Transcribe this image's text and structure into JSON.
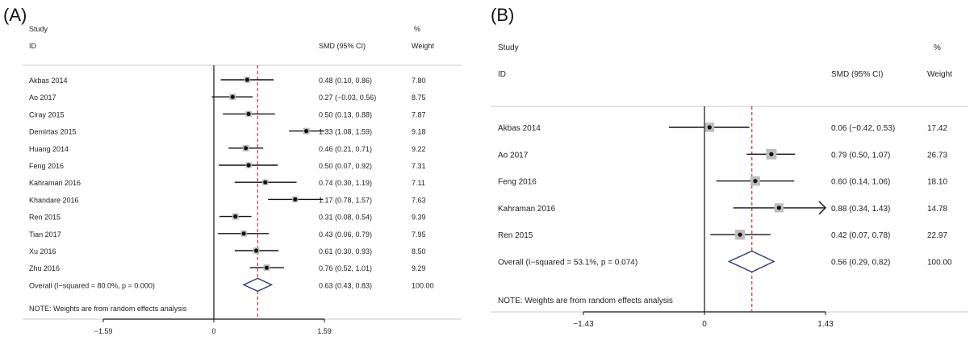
{
  "chart_data": [
    {
      "panel_label": "(A)",
      "type": "forest",
      "headers": {
        "study_line1": "Study",
        "study_line2": "ID",
        "estimate": "SMD (95% CI)",
        "weight_line1": "%",
        "weight_line2": "Weight"
      },
      "studies": [
        {
          "name": "Akbas 2014",
          "smd": 0.48,
          "lo": 0.1,
          "hi": 0.86,
          "ci_text": "0.48 (0.10, 0.86)",
          "weight": "7.80"
        },
        {
          "name": "Ao 2017",
          "smd": 0.27,
          "lo": -0.03,
          "hi": 0.56,
          "ci_text": "0.27 (−0.03, 0.56)",
          "weight": "8.75"
        },
        {
          "name": "Ciray 2015",
          "smd": 0.5,
          "lo": 0.13,
          "hi": 0.88,
          "ci_text": "0.50 (0.13, 0.88)",
          "weight": "7.87"
        },
        {
          "name": "Demirtas 2015",
          "smd": 1.33,
          "lo": 1.08,
          "hi": 1.59,
          "ci_text": "1.33 (1.08, 1.59)",
          "weight": "9.18"
        },
        {
          "name": "Huang 2014",
          "smd": 0.46,
          "lo": 0.21,
          "hi": 0.71,
          "ci_text": "0.46 (0.21, 0.71)",
          "weight": "9.22"
        },
        {
          "name": "Feng 2016",
          "smd": 0.5,
          "lo": 0.07,
          "hi": 0.92,
          "ci_text": "0.50 (0.07, 0.92)",
          "weight": "7.31"
        },
        {
          "name": "Kahraman 2016",
          "smd": 0.74,
          "lo": 0.3,
          "hi": 1.19,
          "ci_text": "0.74 (0.30, 1.19)",
          "weight": "7.11"
        },
        {
          "name": "Khandare 2016",
          "smd": 1.17,
          "lo": 0.78,
          "hi": 1.57,
          "ci_text": "1.17 (0.78, 1.57)",
          "weight": "7.63"
        },
        {
          "name": "Ren 2015",
          "smd": 0.31,
          "lo": 0.08,
          "hi": 0.54,
          "ci_text": "0.31 (0.08, 0.54)",
          "weight": "9.39"
        },
        {
          "name": "Tian 2017",
          "smd": 0.43,
          "lo": 0.06,
          "hi": 0.79,
          "ci_text": "0.43 (0.06, 0.79)",
          "weight": "7.95"
        },
        {
          "name": "Xu 2016",
          "smd": 0.61,
          "lo": 0.3,
          "hi": 0.93,
          "ci_text": "0.61 (0.30, 0.93)",
          "weight": "8.50"
        },
        {
          "name": "Zhu 2016",
          "smd": 0.76,
          "lo": 0.52,
          "hi": 1.01,
          "ci_text": "0.76 (0.52, 1.01)",
          "weight": "9.29"
        }
      ],
      "overall": {
        "label": "Overall  (I−squared = 80.0%, p = 0.000)",
        "smd": 0.63,
        "lo": 0.43,
        "hi": 0.83,
        "ci_text": "0.63 (0.43, 0.83)",
        "weight": "100.00"
      },
      "note": "NOTE: Weights are from random effects analysis",
      "xticks": [
        {
          "value": -1.59,
          "label": "−1.59"
        },
        {
          "value": 0,
          "label": "0"
        },
        {
          "value": 1.59,
          "label": "1.59"
        }
      ],
      "xlim": [
        -1.59,
        1.59
      ],
      "colors": {
        "diamond": "#2a3a6e",
        "ref_line": "#c0392b",
        "box": "#bdbdbd"
      }
    },
    {
      "panel_label": "(B)",
      "type": "forest",
      "headers": {
        "study_line1": "Study",
        "study_line2": "ID",
        "estimate": "SMD (95% CI)",
        "weight_line1": "%",
        "weight_line2": "Weight"
      },
      "studies": [
        {
          "name": "Akbas 2014",
          "smd": 0.06,
          "lo": -0.42,
          "hi": 0.53,
          "ci_text": "0.06 (−0.42, 0.53)",
          "weight": "17.42"
        },
        {
          "name": "Ao 2017",
          "smd": 0.79,
          "lo": 0.5,
          "hi": 1.07,
          "ci_text": "0.79 (0.50, 1.07)",
          "weight": "26.73"
        },
        {
          "name": "Feng 2016",
          "smd": 0.6,
          "lo": 0.14,
          "hi": 1.06,
          "ci_text": "0.60 (0.14, 1.06)",
          "weight": "18.10"
        },
        {
          "name": "Kahraman 2016",
          "smd": 0.88,
          "lo": 0.34,
          "hi": 1.43,
          "ci_text": "0.88 (0.34, 1.43)",
          "weight": "14.78",
          "arrow": true
        },
        {
          "name": "Ren 2015",
          "smd": 0.42,
          "lo": 0.07,
          "hi": 0.78,
          "ci_text": "0.42 (0.07, 0.78)",
          "weight": "22.97"
        }
      ],
      "overall": {
        "label": "Overall  (I−squared = 53.1%, p = 0.074)",
        "smd": 0.56,
        "lo": 0.29,
        "hi": 0.82,
        "ci_text": "0.56 (0.29, 0.82)",
        "weight": "100.00"
      },
      "note": "NOTE: Weights are from random effects analysis",
      "xticks": [
        {
          "value": -1.43,
          "label": "−1.43"
        },
        {
          "value": 0,
          "label": "0"
        },
        {
          "value": 1.43,
          "label": "1.43"
        }
      ],
      "xlim": [
        -1.43,
        1.43
      ],
      "colors": {
        "diamond": "#2a3a6e",
        "ref_line": "#c0392b",
        "box": "#bdbdbd"
      }
    }
  ]
}
